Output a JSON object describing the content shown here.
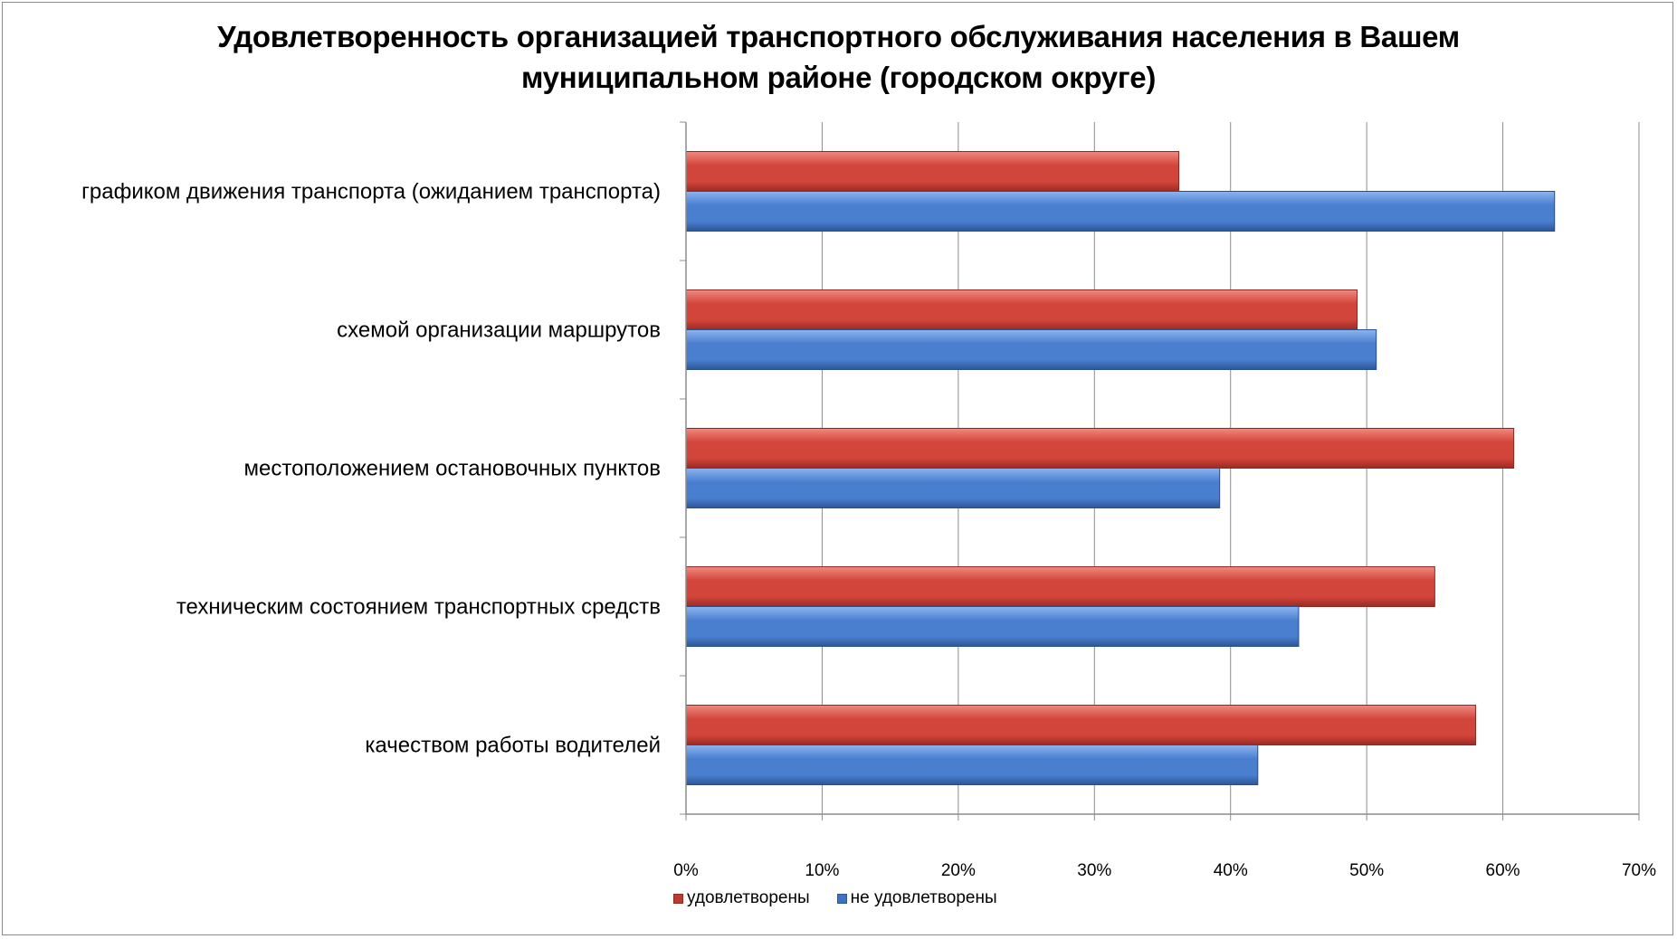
{
  "chart_data": {
    "type": "bar",
    "orientation": "horizontal",
    "title": "Удовлетворенность организацией транспортного обслуживания населения в Вашем муниципальном районе (городском округе)",
    "title_lines": [
      "Удовлетворенность организацией транспортного обслуживания населения в Вашем",
      "муниципальном районе (городском округе)"
    ],
    "categories": [
      "графиком движения транспорта (ожиданием транспорта)",
      "схемой организации маршрутов",
      "местоположением остановочных пунктов",
      "техническим состоянием транспортных средств",
      "качеством работы водителей"
    ],
    "series": [
      {
        "name": "удовлетворены",
        "color": "#c0392f",
        "values": [
          36.2,
          49.3,
          60.8,
          55.0,
          58.0
        ]
      },
      {
        "name": "не удовлетворены",
        "color": "#3e73c4",
        "values": [
          63.8,
          50.7,
          39.2,
          45.0,
          42.0
        ]
      }
    ],
    "xlim": [
      0,
      70
    ],
    "x_ticks": [
      "0%",
      "10%",
      "20%",
      "30%",
      "40%",
      "50%",
      "60%",
      "70%"
    ],
    "grid": true,
    "legend_position": "bottom"
  }
}
